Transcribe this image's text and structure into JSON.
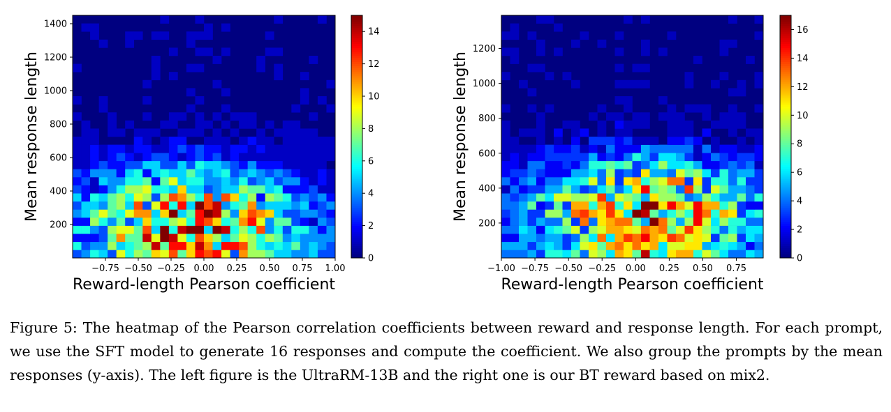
{
  "caption": "Figure 5: The heatmap of the Pearson correlation coefficients between reward and response length. For each prompt, we use the SFT model to generate 16 responses and compute the coefficient. We also group the prompts by the mean responses (y-axis). The left figure is the UltraRM-13B and the right one is our BT reward based on mix2.",
  "chart_data": [
    {
      "type": "heatmap",
      "xlabel": "Reward-length Pearson coefficient",
      "ylabel": "Mean response length",
      "xlim": [
        -1.0,
        1.0
      ],
      "ylim": [
        0,
        1450
      ],
      "xticks": [
        -0.75,
        -0.5,
        -0.25,
        0.0,
        0.25,
        0.5,
        0.75,
        1.0
      ],
      "xtick_labels": [
        "−0.75",
        "−0.50",
        "−0.25",
        "0.00",
        "0.25",
        "0.50",
        "0.75",
        "1.00"
      ],
      "yticks": [
        200,
        400,
        600,
        800,
        1000,
        1200,
        1400
      ],
      "colorbar_min": 0,
      "colorbar_max": 15,
      "colorbar_ticks": [
        0,
        2,
        4,
        6,
        8,
        10,
        12,
        14
      ],
      "colormap": "jet",
      "grid": false,
      "bins_x": 30,
      "bins_y": 30,
      "description_hint": "counts concentrate near length 50-400 and coefficient 0 to 1; sparse above 700"
    },
    {
      "type": "heatmap",
      "xlabel": "Reward-length Pearson coefficient",
      "ylabel": "Mean response length",
      "xlim": [
        -1.0,
        0.95
      ],
      "ylim": [
        0,
        1390
      ],
      "xticks": [
        -1.0,
        -0.75,
        -0.5,
        -0.25,
        0.0,
        0.25,
        0.5,
        0.75
      ],
      "xtick_labels": [
        "−1.00",
        "−0.75",
        "−0.50",
        "−0.25",
        "0.00",
        "0.25",
        "0.50",
        "0.75"
      ],
      "yticks": [
        200,
        400,
        600,
        800,
        1000,
        1200
      ],
      "colorbar_min": 0,
      "colorbar_max": 17,
      "colorbar_ticks": [
        0,
        2,
        4,
        6,
        8,
        10,
        12,
        14,
        16
      ],
      "colormap": "jet",
      "grid": false,
      "bins_x": 30,
      "bins_y": 30,
      "description_hint": "counts concentrate near length 150-450 and coefficient -0.5 to 0.75; sparse above 650"
    }
  ]
}
